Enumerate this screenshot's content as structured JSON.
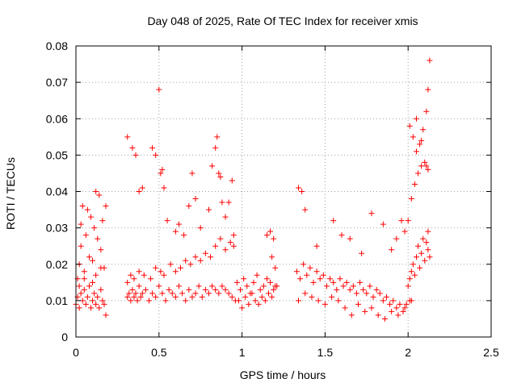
{
  "chart_data": {
    "type": "scatter",
    "title": "Day 048 of 2025, Rate Of TEC Index for receiver xmis",
    "xlabel": "GPS time / hours",
    "ylabel": "ROTI / TECUs",
    "xlim": [
      0,
      2.5
    ],
    "ylim": [
      0,
      0.08
    ],
    "xticks": [
      0,
      0.5,
      1,
      1.5,
      2,
      2.5
    ],
    "xtick_labels": [
      "0",
      "0.5",
      "1",
      "1.5",
      "2",
      "2.5"
    ],
    "yticks": [
      0,
      0.01,
      0.02,
      0.03,
      0.04,
      0.05,
      0.06,
      0.07,
      0.08
    ],
    "ytick_labels": [
      "0",
      "0.01",
      "0.02",
      "0.03",
      "0.04",
      "0.05",
      "0.06",
      "0.07",
      "0.08"
    ],
    "grid": true,
    "marker": "+",
    "color": "#ff0000",
    "series": [
      {
        "x": [
          0.0,
          0.01,
          0.02,
          0.03,
          0.04,
          0.05,
          0.06,
          0.07,
          0.08,
          0.09,
          0.1,
          0.11,
          0.12,
          0.13,
          0.14,
          0.15,
          0.16,
          0.17,
          0.18,
          0.01,
          0.02,
          0.03,
          0.05,
          0.08,
          0.1,
          0.12,
          0.15,
          0.17,
          0.03,
          0.06,
          0.09,
          0.11,
          0.13,
          0.16,
          0.04,
          0.07,
          0.12,
          0.14,
          0.18,
          0.02,
          0.05,
          0.1,
          0.15,
          0.31,
          0.32,
          0.33,
          0.34,
          0.35,
          0.36,
          0.37,
          0.38,
          0.39,
          0.4,
          0.42,
          0.44,
          0.46,
          0.48,
          0.5,
          0.52,
          0.54,
          0.56,
          0.58,
          0.6,
          0.62,
          0.64,
          0.66,
          0.68,
          0.7,
          0.72,
          0.74,
          0.76,
          0.78,
          0.8,
          0.82,
          0.84,
          0.86,
          0.88,
          0.9,
          0.92,
          0.94,
          0.96,
          0.31,
          0.33,
          0.35,
          0.38,
          0.41,
          0.45,
          0.48,
          0.51,
          0.53,
          0.57,
          0.6,
          0.63,
          0.66,
          0.69,
          0.72,
          0.75,
          0.78,
          0.81,
          0.84,
          0.87,
          0.9,
          0.93,
          0.95,
          0.31,
          0.34,
          0.36,
          0.38,
          0.4,
          0.46,
          0.48,
          0.5,
          0.51,
          0.52,
          0.53,
          0.55,
          0.6,
          0.62,
          0.65,
          0.68,
          0.7,
          0.72,
          0.75,
          0.8,
          0.82,
          0.84,
          0.85,
          0.86,
          0.87,
          0.88,
          0.9,
          0.92,
          0.94,
          0.95,
          0.97,
          0.99,
          1.01,
          1.03,
          1.05,
          1.07,
          1.09,
          1.11,
          1.13,
          1.15,
          1.17,
          1.19,
          1.21,
          0.98,
          1.0,
          1.02,
          1.04,
          1.06,
          1.08,
          1.1,
          1.12,
          1.14,
          1.16,
          1.18,
          1.2,
          1.15,
          1.17,
          1.19,
          1.2,
          1.18,
          1.33,
          1.35,
          1.37,
          1.39,
          1.41,
          1.43,
          1.45,
          1.47,
          1.49,
          1.51,
          1.53,
          1.55,
          1.57,
          1.59,
          1.61,
          1.63,
          1.65,
          1.67,
          1.69,
          1.71,
          1.73,
          1.75,
          1.77,
          1.79,
          1.81,
          1.83,
          1.85,
          1.87,
          1.89,
          1.91,
          1.93,
          1.95,
          1.97,
          1.99,
          2.01,
          1.34,
          1.38,
          1.42,
          1.46,
          1.5,
          1.54,
          1.58,
          1.62,
          1.66,
          1.7,
          1.74,
          1.78,
          1.82,
          1.86,
          1.9,
          1.94,
          1.98,
          2.02,
          1.34,
          1.36,
          1.38,
          1.45,
          1.55,
          1.6,
          1.65,
          1.72,
          1.78,
          1.85,
          1.9,
          1.93,
          1.96,
          1.98,
          2.0,
          2.01,
          2.02,
          2.03,
          2.04,
          2.05,
          2.06,
          2.07,
          2.08,
          2.09,
          2.1,
          2.11,
          2.12,
          2.13,
          2.0,
          2.02,
          2.04,
          2.06,
          2.08,
          2.1,
          2.12,
          2.01,
          2.03,
          2.05,
          2.07,
          2.09,
          2.11,
          2.12,
          2.05,
          2.08,
          2.11,
          2.12,
          2.13
        ],
        "y": [
          0.009,
          0.011,
          0.008,
          0.012,
          0.01,
          0.013,
          0.009,
          0.011,
          0.014,
          0.008,
          0.01,
          0.012,
          0.009,
          0.011,
          0.008,
          0.013,
          0.01,
          0.009,
          0.006,
          0.016,
          0.02,
          0.025,
          0.018,
          0.022,
          0.015,
          0.017,
          0.024,
          0.019,
          0.031,
          0.028,
          0.033,
          0.03,
          0.027,
          0.032,
          0.036,
          0.035,
          0.04,
          0.039,
          0.036,
          0.014,
          0.016,
          0.021,
          0.019,
          0.011,
          0.012,
          0.01,
          0.013,
          0.011,
          0.012,
          0.01,
          0.014,
          0.011,
          0.012,
          0.013,
          0.01,
          0.012,
          0.011,
          0.014,
          0.012,
          0.01,
          0.013,
          0.012,
          0.011,
          0.014,
          0.012,
          0.01,
          0.013,
          0.011,
          0.012,
          0.014,
          0.011,
          0.013,
          0.012,
          0.014,
          0.013,
          0.012,
          0.014,
          0.013,
          0.012,
          0.011,
          0.01,
          0.015,
          0.017,
          0.016,
          0.018,
          0.017,
          0.016,
          0.019,
          0.018,
          0.017,
          0.02,
          0.018,
          0.019,
          0.021,
          0.02,
          0.022,
          0.021,
          0.023,
          0.022,
          0.025,
          0.027,
          0.024,
          0.026,
          0.025,
          0.055,
          0.052,
          0.05,
          0.04,
          0.041,
          0.052,
          0.05,
          0.068,
          0.045,
          0.046,
          0.041,
          0.032,
          0.029,
          0.031,
          0.028,
          0.036,
          0.045,
          0.038,
          0.03,
          0.035,
          0.047,
          0.052,
          0.055,
          0.045,
          0.044,
          0.037,
          0.033,
          0.037,
          0.043,
          0.028,
          0.015,
          0.013,
          0.016,
          0.014,
          0.012,
          0.015,
          0.017,
          0.013,
          0.014,
          0.016,
          0.015,
          0.013,
          0.014,
          0.01,
          0.008,
          0.011,
          0.009,
          0.012,
          0.01,
          0.009,
          0.011,
          0.01,
          0.012,
          0.011,
          0.014,
          0.028,
          0.029,
          0.027,
          0.019,
          0.022,
          0.018,
          0.016,
          0.02,
          0.017,
          0.019,
          0.015,
          0.018,
          0.016,
          0.017,
          0.014,
          0.016,
          0.015,
          0.013,
          0.016,
          0.014,
          0.015,
          0.013,
          0.014,
          0.012,
          0.015,
          0.013,
          0.012,
          0.014,
          0.011,
          0.013,
          0.012,
          0.01,
          0.011,
          0.009,
          0.01,
          0.008,
          0.009,
          0.007,
          0.009,
          0.01,
          0.01,
          0.012,
          0.011,
          0.01,
          0.009,
          0.011,
          0.01,
          0.008,
          0.006,
          0.009,
          0.007,
          0.008,
          0.006,
          0.005,
          0.007,
          0.006,
          0.008,
          0.01,
          0.041,
          0.04,
          0.035,
          0.025,
          0.032,
          0.028,
          0.027,
          0.023,
          0.034,
          0.031,
          0.024,
          0.027,
          0.032,
          0.029,
          0.014,
          0.016,
          0.018,
          0.02,
          0.017,
          0.022,
          0.025,
          0.019,
          0.023,
          0.027,
          0.021,
          0.026,
          0.024,
          0.022,
          0.032,
          0.038,
          0.042,
          0.045,
          0.047,
          0.048,
          0.046,
          0.058,
          0.055,
          0.051,
          0.053,
          0.057,
          0.062,
          0.068,
          0.06,
          0.054,
          0.047,
          0.029,
          0.076
        ]
      }
    ]
  }
}
